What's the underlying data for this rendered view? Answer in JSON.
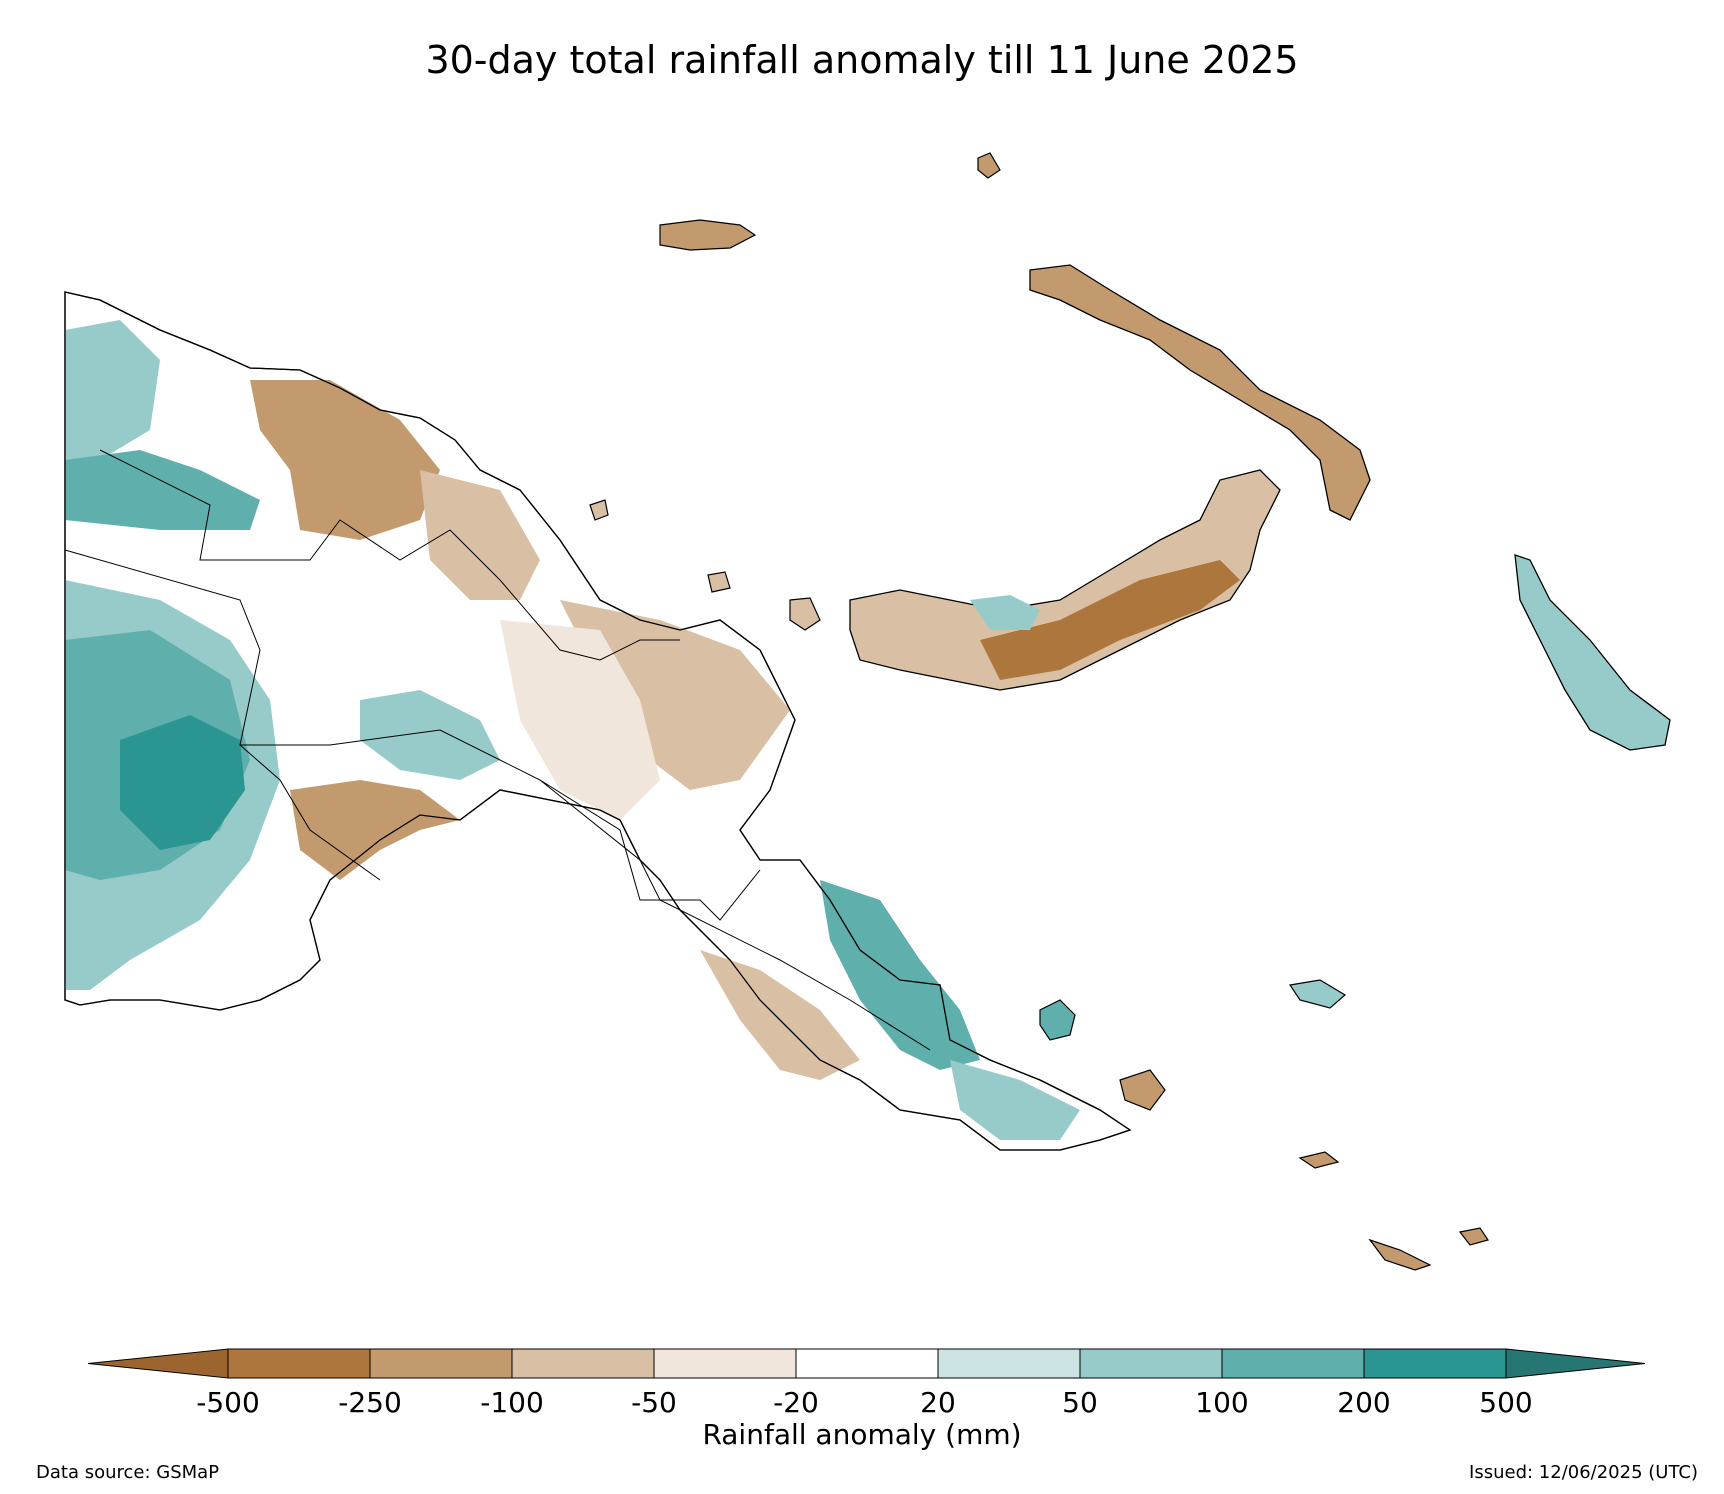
{
  "title": "30-day total rainfall anomaly till 11 June 2025",
  "colorbar": {
    "label": "Rainfall anomaly (mm)",
    "ticks": [
      "-500",
      "-250",
      "-100",
      "-50",
      "-20",
      "20",
      "50",
      "100",
      "200",
      "500"
    ],
    "bins": [
      {
        "range": "<-500",
        "color": "#9c6530"
      },
      {
        "range": "-500 to -250",
        "color": "#ad763c"
      },
      {
        "range": "-250 to -100",
        "color": "#c39a6e"
      },
      {
        "range": "-100 to -50",
        "color": "#d9bfa3"
      },
      {
        "range": "-50 to -20",
        "color": "#f0e6dc"
      },
      {
        "range": "-20 to 20",
        "color": "#ffffff"
      },
      {
        "range": "20 to 50",
        "color": "#cbe4e3"
      },
      {
        "range": "50 to 100",
        "color": "#97cbc9"
      },
      {
        "range": "100 to 200",
        "color": "#5fb0ad"
      },
      {
        "range": "200 to 500",
        "color": "#2b9591"
      },
      {
        "range": ">500",
        "color": "#267673"
      }
    ]
  },
  "footer": {
    "source": "Data source: GSMaP",
    "issued": "Issued: 12/06/2025 (UTC)"
  }
}
